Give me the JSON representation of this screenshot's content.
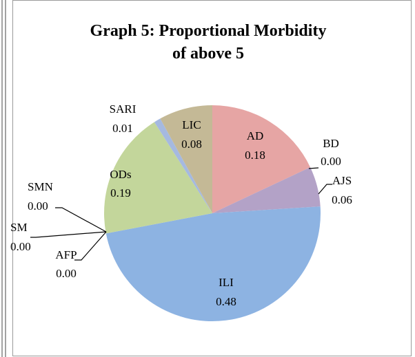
{
  "chart_data": {
    "type": "pie",
    "title": "Graph 5: Proportional Morbidity of above 5",
    "categories": [
      "AD",
      "BD",
      "AJS",
      "ILI",
      "AFP",
      "SM",
      "SMN",
      "ODs",
      "SARI",
      "LIC"
    ],
    "values": [
      0.18,
      0.0,
      0.06,
      0.48,
      0.0,
      0.0,
      0.0,
      0.19,
      0.01,
      0.08
    ],
    "value_labels": [
      "0.18",
      "0.00",
      "0.06",
      "0.48",
      "0.00",
      "0.00",
      "0.00",
      "0.19",
      "0.01",
      "0.08"
    ],
    "colors": [
      "#e6a5a4",
      "#c0504d",
      "#b3a2c7",
      "#8db3e2",
      "#4f81bd",
      "#9bbb59",
      "#f79646",
      "#c3d69b",
      "#a5b9e0",
      "#c4b996"
    ]
  }
}
